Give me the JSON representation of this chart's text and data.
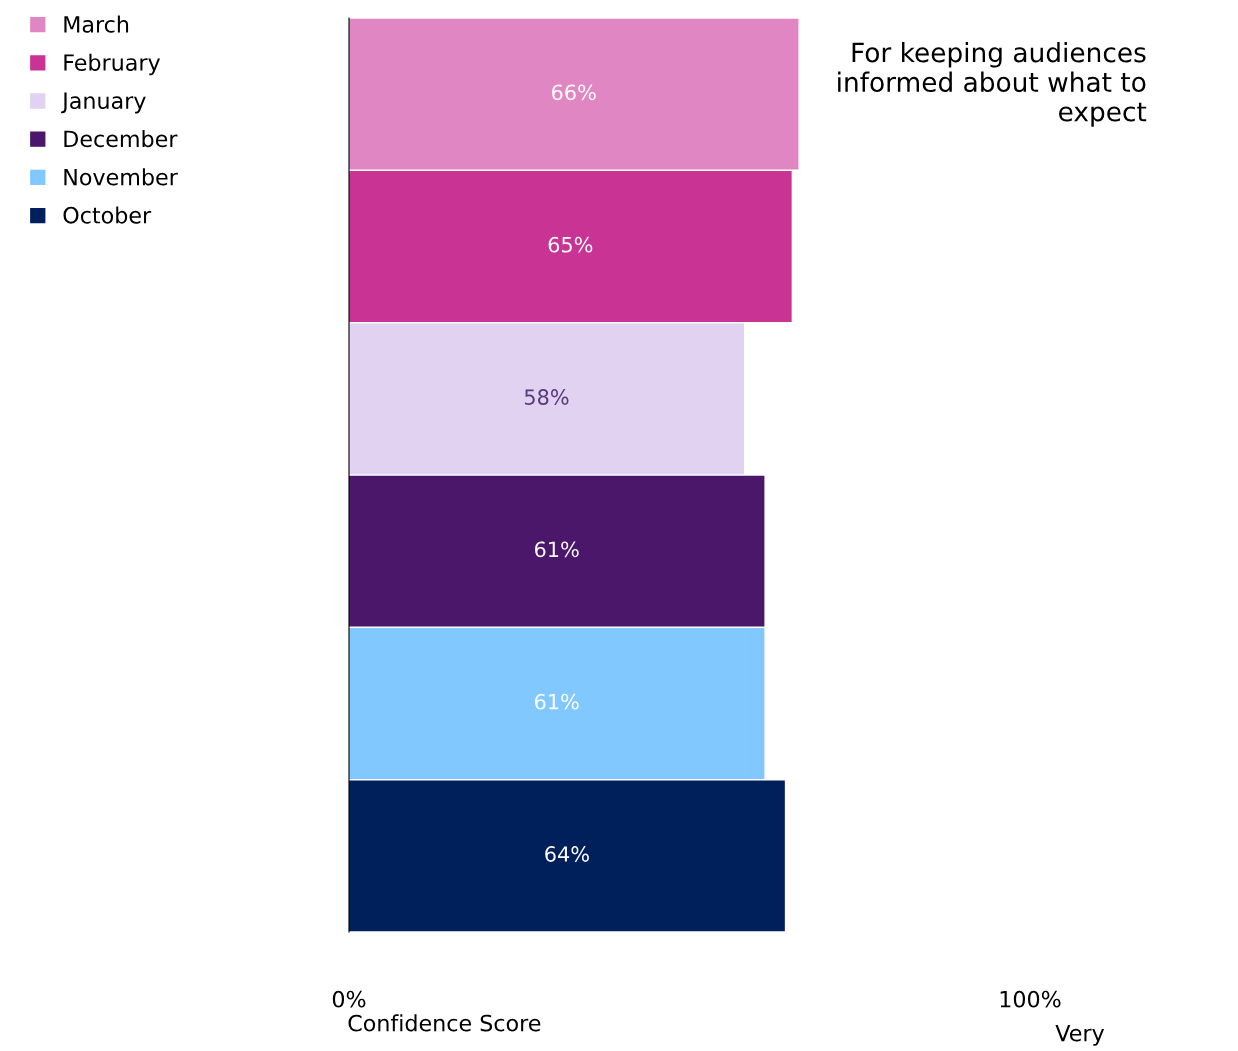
{
  "chart_data": {
    "type": "bar",
    "orientation": "horizontal",
    "categories": [
      null,
      null,
      null,
      null,
      null,
      null
    ],
    "series": [
      {
        "name": "March",
        "color": "#e086c2",
        "values": [
          66,
          null,
          null,
          null,
          null,
          null
        ]
      },
      {
        "name": "February",
        "color": "#c93394",
        "values": [
          null,
          65,
          null,
          null,
          null,
          null
        ]
      },
      {
        "name": "January",
        "color": "#e2d2f1",
        "values": [
          null,
          null,
          58,
          null,
          null,
          null
        ]
      },
      {
        "name": "December",
        "color": "#4a176b",
        "values": [
          null,
          null,
          null,
          61,
          null,
          null
        ]
      },
      {
        "name": "November",
        "color": "#80c8ff",
        "values": [
          null,
          null,
          null,
          null,
          61,
          null
        ]
      },
      {
        "name": "October",
        "color": "#00205c",
        "values": [
          null,
          null,
          null,
          null,
          null,
          64
        ]
      }
    ],
    "xlim": [
      0,
      100
    ],
    "xticks": [
      {
        "value": 0,
        "label": "0%"
      },
      {
        "value": 100,
        "label": "100%"
      }
    ],
    "xlabel": "Confidence Score",
    "annotations": [
      "For keeping audiences informed about what to expect",
      "Very"
    ],
    "value_labels": [
      "66%",
      "65%",
      "58%",
      "61%",
      "61%",
      "64%"
    ],
    "legend": "top left",
    "grid": false
  }
}
